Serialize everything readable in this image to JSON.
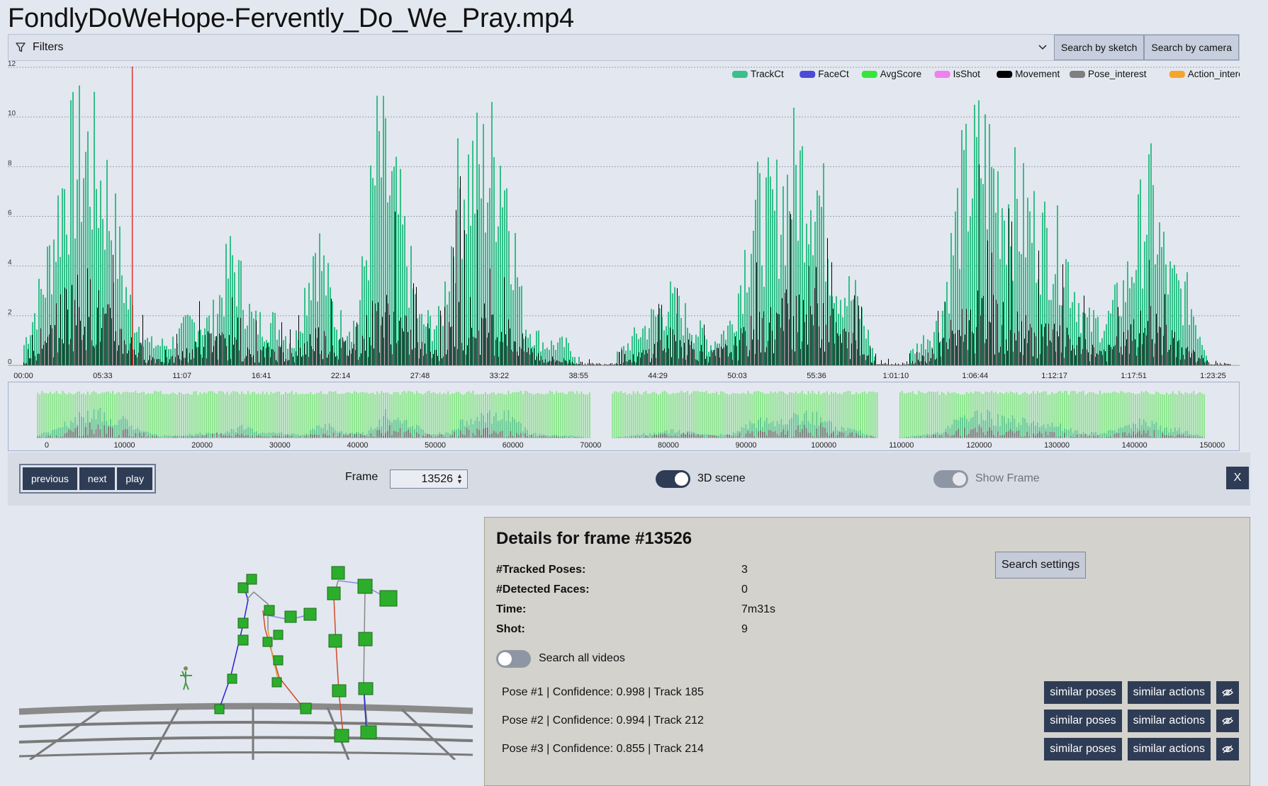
{
  "title": "FondlyDoWeHope-Fervently_Do_We_Pray.mp4",
  "filters": {
    "label": "Filters",
    "search_sketch": "Search by sketch",
    "search_camera": "Search by camera"
  },
  "chart_data": [
    {
      "type": "bar",
      "legend": [
        "TrackCt",
        "FaceCt",
        "AvgScore",
        "IsShot",
        "Movement",
        "Pose_interest",
        "Action_interest"
      ],
      "legend_colors": [
        "#3cbf8c",
        "#4b4bd8",
        "#34e63a",
        "#f07ff0",
        "#000000",
        "#7f7f7f",
        "#f5a52c"
      ],
      "yticks": [
        "0",
        "2",
        "4",
        "6",
        "8",
        "10",
        "12"
      ],
      "ylim": [
        0,
        12
      ],
      "xticks": [
        "00:00",
        "05:33",
        "11:07",
        "16:41",
        "22:14",
        "27:48",
        "33:22",
        "38:55",
        "44:29",
        "50:03",
        "55:36",
        "1:01:10",
        "1:06:44",
        "1:12:17",
        "1:17:51",
        "1:23:25"
      ],
      "series": [
        {
          "name": "TrackCt",
          "values": [
            1,
            4,
            9,
            10,
            8,
            3,
            1,
            1,
            2,
            2,
            5,
            2,
            2,
            1,
            6,
            2,
            2,
            10,
            7,
            2,
            2,
            9,
            9,
            10,
            2,
            1,
            1,
            0,
            0,
            1,
            2,
            3,
            2,
            1,
            2,
            7,
            7,
            9,
            9,
            4,
            3,
            0,
            0,
            1,
            2,
            8,
            10,
            8,
            7,
            6,
            5,
            2,
            2,
            4,
            8,
            4,
            3,
            0,
            0
          ]
        },
        {
          "name": "Movement",
          "values": [
            0.2,
            1,
            3.5,
            4,
            2.5,
            1.5,
            0.5,
            0.3,
            0.8,
            1.5,
            1.2,
            0.6,
            1,
            0.5,
            1.8,
            1.2,
            1,
            3.2,
            2.5,
            1,
            0.8,
            3,
            2.5,
            2.2,
            1.2,
            0.4,
            0.3,
            0.1,
            0.1,
            0.3,
            0.8,
            1.5,
            1.2,
            0.6,
            1,
            2,
            2.5,
            3.5,
            4,
            2,
            1.2,
            0.1,
            0.1,
            0.3,
            1,
            2.5,
            3,
            2.5,
            2,
            1.8,
            1.5,
            1,
            0.8,
            1.5,
            2.5,
            1.5,
            0.8,
            0.1,
            0.1
          ]
        }
      ],
      "cursor_x": 13526
    },
    {
      "type": "area",
      "xticks": [
        "0",
        "10000",
        "20000",
        "30000",
        "40000",
        "50000",
        "60000",
        "70000",
        "80000",
        "90000",
        "100000",
        "110000",
        "120000",
        "130000",
        "140000",
        "150000"
      ],
      "xlim": [
        0,
        150000
      ]
    }
  ],
  "controls": {
    "previous": "previous",
    "next": "next",
    "play": "play",
    "frame_label": "Frame",
    "frame_value": "13526",
    "scene_label": "3D scene",
    "show_frame_label": "Show Frame",
    "close": "X"
  },
  "details": {
    "title": "Details for frame #13526",
    "tracked_label": "#Tracked Poses:",
    "tracked_value": "3",
    "faces_label": "#Detected Faces:",
    "faces_value": "0",
    "time_label": "Time:",
    "time_value": "7m31s",
    "shot_label": "Shot:",
    "shot_value": "9",
    "settings": "Search settings",
    "search_all": "Search all videos",
    "poses": [
      {
        "text": "Pose #1 | Confidence: 0.998 | Track 185"
      },
      {
        "text": "Pose #2 | Confidence: 0.994 | Track 212"
      },
      {
        "text": "Pose #3 | Confidence: 0.855 | Track 214"
      }
    ],
    "similar_poses": "similar poses",
    "similar_actions": "similar actions"
  }
}
